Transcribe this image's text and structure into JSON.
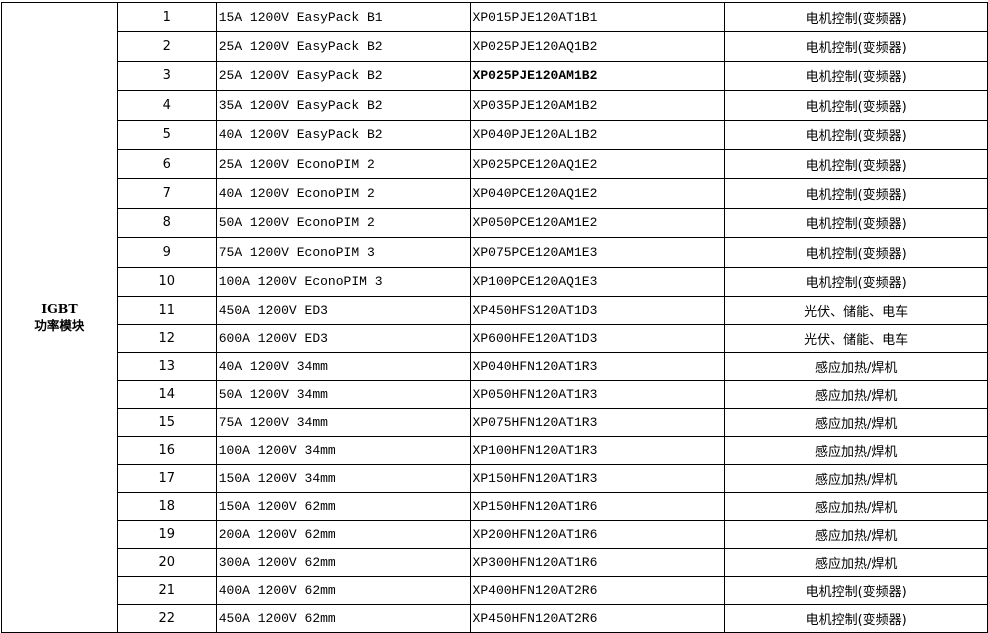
{
  "category": {
    "line1": "IGBT",
    "line2": "功率模块"
  },
  "rows": [
    {
      "no": "1",
      "spec": "15A 1200V EasyPack B1",
      "part": "XP015PJE120AT1B1",
      "app": "电机控制(变频器)"
    },
    {
      "no": "2",
      "spec": "25A 1200V EasyPack B2",
      "part": "XP025PJE120AQ1B2",
      "app": "电机控制(变频器)"
    },
    {
      "no": "3",
      "spec": "25A 1200V EasyPack B2",
      "part": "XP025PJE120AM1B2",
      "app": "电机控制(变频器)",
      "bold": true
    },
    {
      "no": "4",
      "spec": "35A 1200V EasyPack B2",
      "part": "XP035PJE120AM1B2",
      "app": "电机控制(变频器)"
    },
    {
      "no": "5",
      "spec": "40A 1200V EasyPack B2",
      "part": "XP040PJE120AL1B2",
      "app": "电机控制(变频器)"
    },
    {
      "no": "6",
      "spec": "25A 1200V EconoPIM 2",
      "part": "XP025PCE120AQ1E2",
      "app": "电机控制(变频器)"
    },
    {
      "no": "7",
      "spec": "40A 1200V EconoPIM 2",
      "part": "XP040PCE120AQ1E2",
      "app": "电机控制(变频器)"
    },
    {
      "no": "8",
      "spec": "50A 1200V EconoPIM 2",
      "part": "XP050PCE120AM1E2",
      "app": "电机控制(变频器)"
    },
    {
      "no": "9",
      "spec": "75A 1200V EconoPIM 3",
      "part": "XP075PCE120AM1E3",
      "app": "电机控制(变频器)"
    },
    {
      "no": "10",
      "spec": "100A 1200V EconoPIM 3",
      "part": "XP100PCE120AQ1E3",
      "app": "电机控制(变频器)"
    },
    {
      "no": "11",
      "spec": "450A 1200V ED3",
      "part": "XP450HFS120AT1D3",
      "app": "光伏、储能、电车"
    },
    {
      "no": "12",
      "spec": "600A 1200V ED3",
      "part": "XP600HFE120AT1D3",
      "app": "光伏、储能、电车"
    },
    {
      "no": "13",
      "spec": "40A 1200V 34mm",
      "part": "XP040HFN120AT1R3",
      "app": "感应加热/焊机"
    },
    {
      "no": "14",
      "spec": "50A 1200V 34mm",
      "part": "XP050HFN120AT1R3",
      "app": "感应加热/焊机"
    },
    {
      "no": "15",
      "spec": "75A 1200V 34mm",
      "part": "XP075HFN120AT1R3",
      "app": "感应加热/焊机"
    },
    {
      "no": "16",
      "spec": "100A 1200V 34mm",
      "part": "XP100HFN120AT1R3",
      "app": "感应加热/焊机"
    },
    {
      "no": "17",
      "spec": "150A 1200V 34mm",
      "part": "XP150HFN120AT1R3",
      "app": "感应加热/焊机"
    },
    {
      "no": "18",
      "spec": "150A 1200V 62mm",
      "part": "XP150HFN120AT1R6",
      "app": "感应加热/焊机"
    },
    {
      "no": "19",
      "spec": "200A 1200V 62mm",
      "part": "XP200HFN120AT1R6",
      "app": "感应加热/焊机"
    },
    {
      "no": "20",
      "spec": "300A 1200V 62mm",
      "part": "XP300HFN120AT1R6",
      "app": "感应加热/焊机"
    },
    {
      "no": "21",
      "spec": "400A 1200V 62mm",
      "part": "XP400HFN120AT2R6",
      "app": "电机控制(变频器)"
    },
    {
      "no": "22",
      "spec": "450A 1200V 62mm",
      "part": "XP450HFN120AT2R6",
      "app": "电机控制(变频器)"
    }
  ]
}
